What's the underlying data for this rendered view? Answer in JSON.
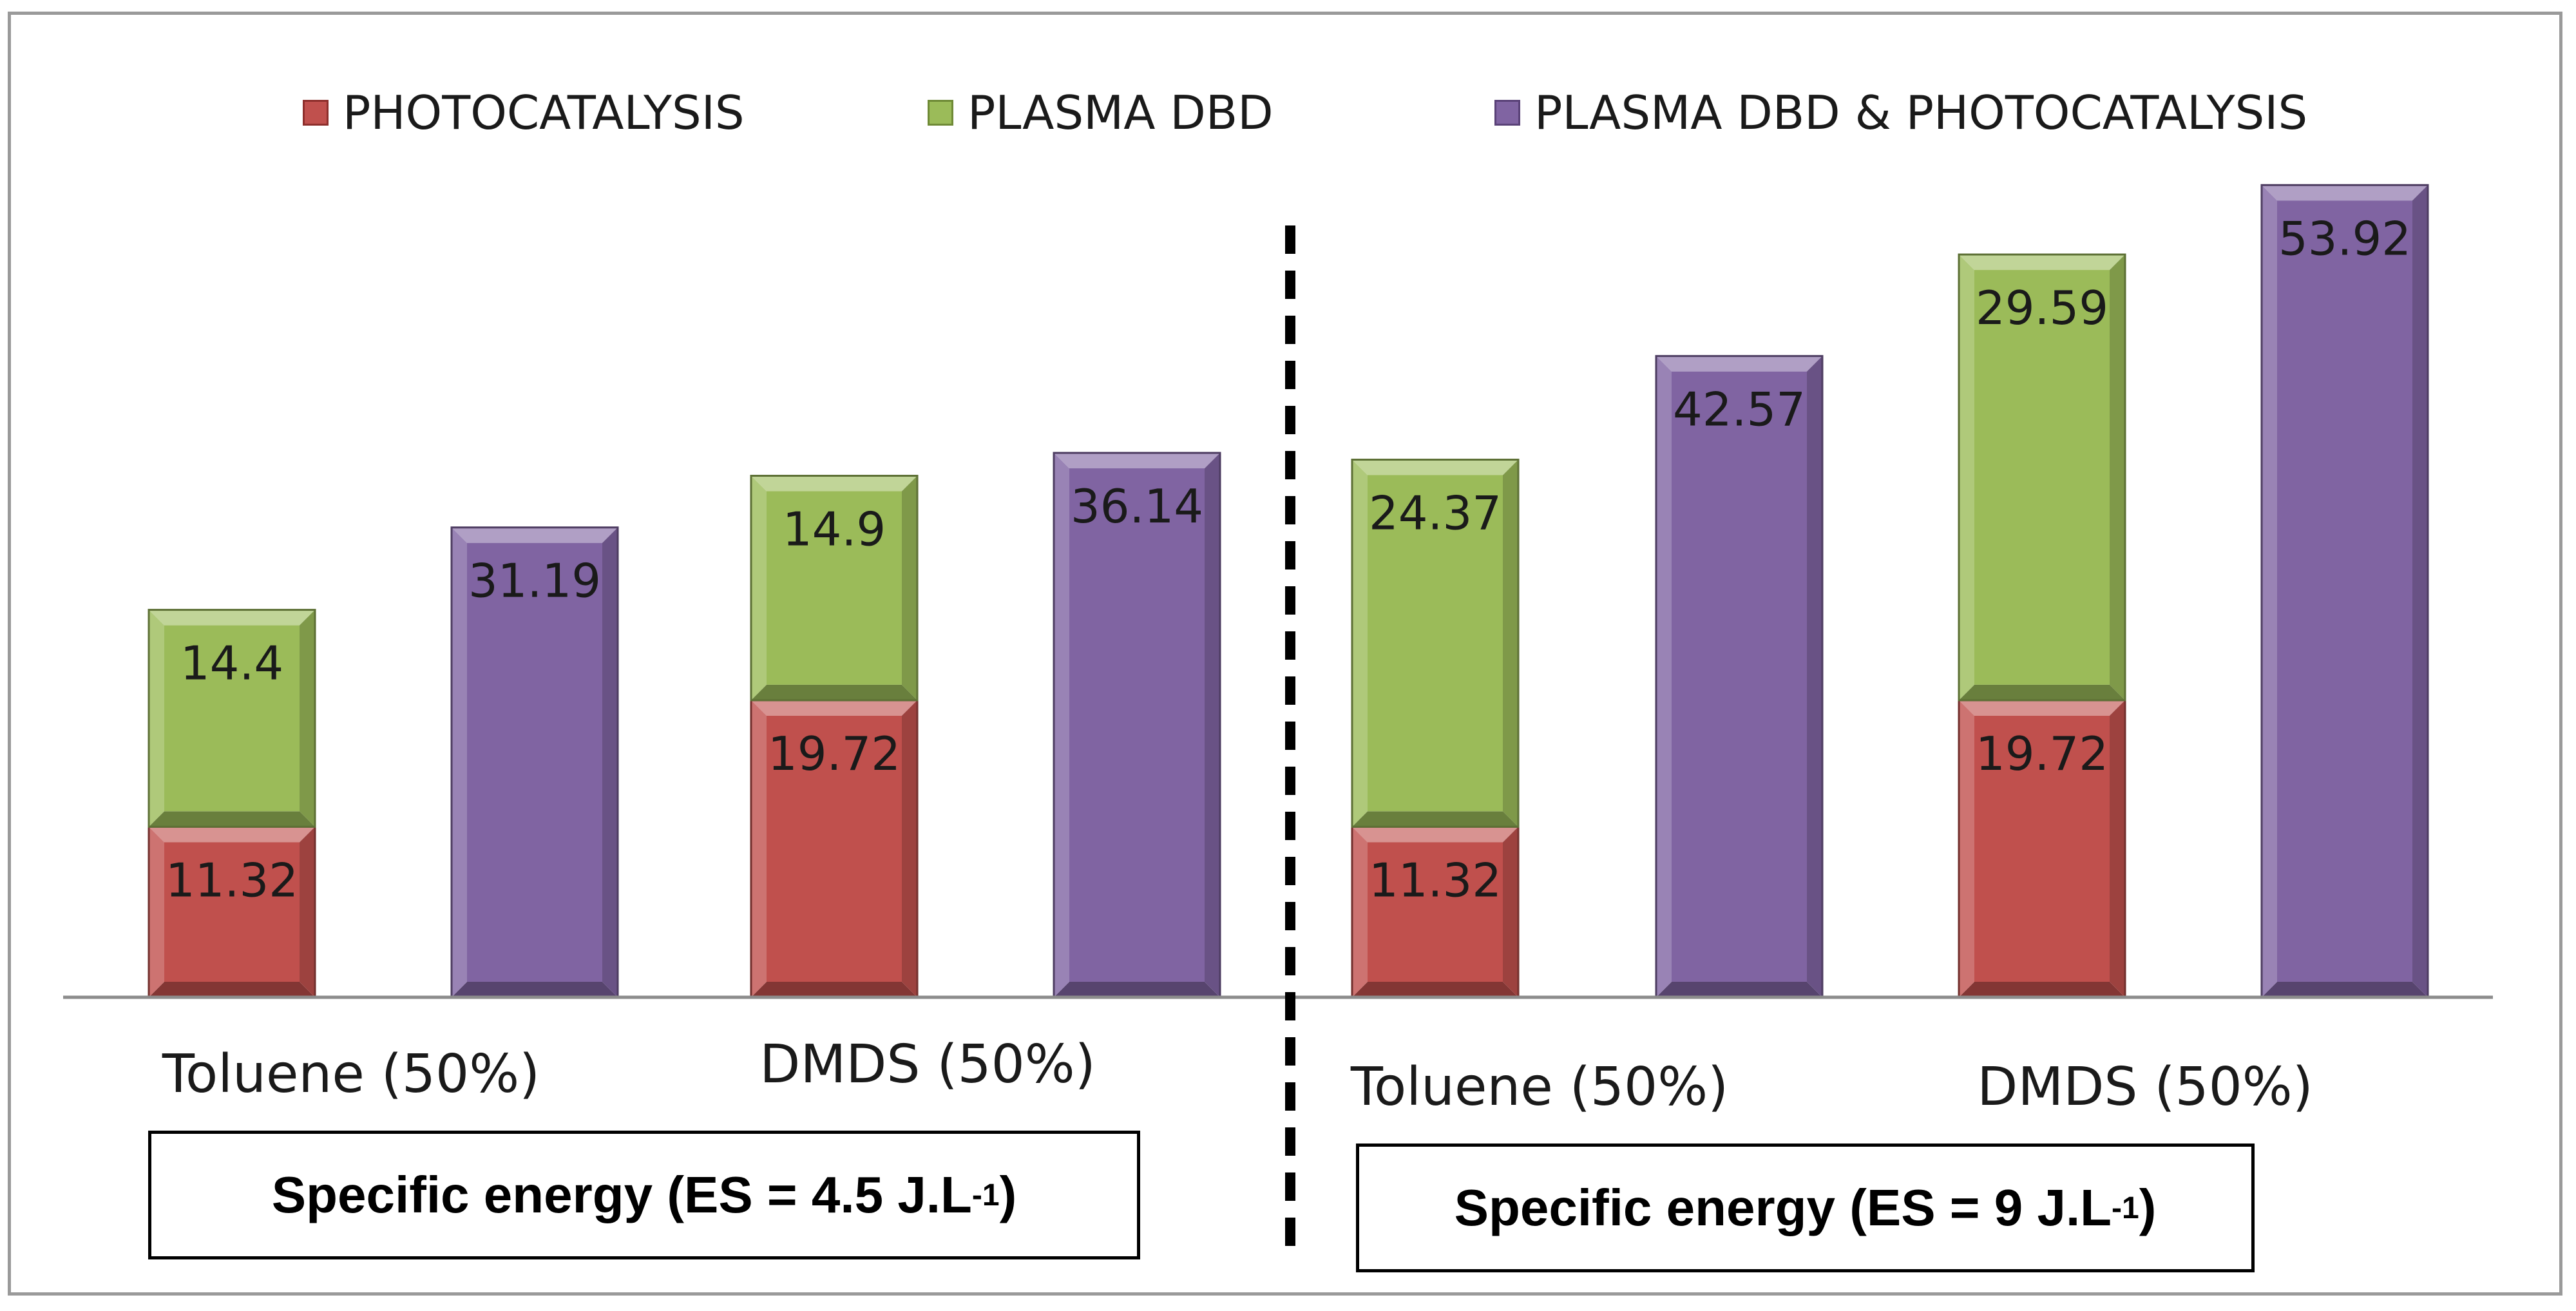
{
  "chart_data": {
    "type": "bar",
    "stacked": true,
    "legend": {
      "position": "top",
      "entries": [
        {
          "name": "PHOTOCATALYSIS",
          "color": "#c0504d"
        },
        {
          "name": "PLASMA DBD",
          "color": "#9bbb59"
        },
        {
          "name": "PLASMA DBD & PHOTOCATALYSIS",
          "color": "#8064a2"
        }
      ]
    },
    "ylim": [
      0,
      55
    ],
    "grid": false,
    "panels": [
      {
        "annotation_main": "Specific energy (ES = 4.5 J.L",
        "annotation_sup": "-1",
        "annotation_end": ")",
        "categories": [
          "Toluene (50%)",
          "DMDS (50%)"
        ],
        "bars": [
          {
            "category": "Toluene (50%)",
            "segments": [
              {
                "series": "PHOTOCATALYSIS",
                "value": 11.32,
                "label": "11.32"
              },
              {
                "series": "PLASMA DBD",
                "value": 14.4,
                "label": "14.4"
              }
            ]
          },
          {
            "category": "Toluene (50%)",
            "segments": [
              {
                "series": "PLASMA DBD & PHOTOCATALYSIS",
                "value": 31.19,
                "label": "31.19"
              }
            ]
          },
          {
            "category": "DMDS (50%)",
            "segments": [
              {
                "series": "PHOTOCATALYSIS",
                "value": 19.72,
                "label": "19.72"
              },
              {
                "series": "PLASMA DBD",
                "value": 14.9,
                "label": "14.9"
              }
            ]
          },
          {
            "category": "DMDS (50%)",
            "segments": [
              {
                "series": "PLASMA DBD & PHOTOCATALYSIS",
                "value": 36.14,
                "label": "36.14"
              }
            ]
          }
        ]
      },
      {
        "annotation_main": "Specific energy (ES = 9 J.L",
        "annotation_sup": "-1",
        "annotation_end": ")",
        "categories": [
          "Toluene (50%)",
          "DMDS (50%)"
        ],
        "bars": [
          {
            "category": "Toluene (50%)",
            "segments": [
              {
                "series": "PHOTOCATALYSIS",
                "value": 11.32,
                "label": "11.32"
              },
              {
                "series": "PLASMA DBD",
                "value": 24.37,
                "label": "24.37"
              }
            ]
          },
          {
            "category": "Toluene (50%)",
            "segments": [
              {
                "series": "PLASMA DBD & PHOTOCATALYSIS",
                "value": 42.57,
                "label": "42.57"
              }
            ]
          },
          {
            "category": "DMDS (50%)",
            "segments": [
              {
                "series": "PHOTOCATALYSIS",
                "value": 19.72,
                "label": "19.72"
              },
              {
                "series": "PLASMA DBD",
                "value": 29.59,
                "label": "29.59"
              }
            ]
          },
          {
            "category": "DMDS (50%)",
            "segments": [
              {
                "series": "PLASMA DBD & PHOTOCATALYSIS",
                "value": 53.92,
                "label": "53.92"
              }
            ]
          }
        ]
      }
    ]
  }
}
